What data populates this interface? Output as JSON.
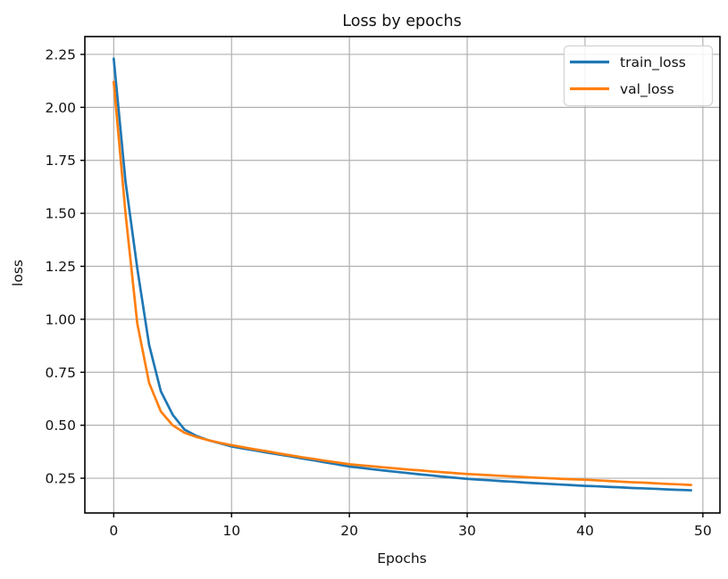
{
  "chart_data": {
    "type": "line",
    "title": "Loss by epochs",
    "xlabel": "Epochs",
    "ylabel": "loss",
    "x": [
      0,
      1,
      2,
      3,
      4,
      5,
      6,
      7,
      8,
      9,
      10,
      11,
      12,
      13,
      14,
      15,
      16,
      17,
      18,
      19,
      20,
      21,
      22,
      23,
      24,
      25,
      26,
      27,
      28,
      29,
      30,
      31,
      32,
      33,
      34,
      35,
      36,
      37,
      38,
      39,
      40,
      41,
      42,
      43,
      44,
      45,
      46,
      47,
      48,
      49
    ],
    "series": [
      {
        "name": "train_loss",
        "color": "#1f77b4",
        "values": [
          2.23,
          1.65,
          1.24,
          0.88,
          0.66,
          0.55,
          0.48,
          0.45,
          0.43,
          0.415,
          0.4,
          0.39,
          0.381,
          0.371,
          0.362,
          0.353,
          0.343,
          0.334,
          0.324,
          0.315,
          0.305,
          0.299,
          0.292,
          0.286,
          0.28,
          0.274,
          0.268,
          0.263,
          0.257,
          0.252,
          0.247,
          0.243,
          0.24,
          0.236,
          0.233,
          0.229,
          0.226,
          0.223,
          0.22,
          0.217,
          0.214,
          0.212,
          0.209,
          0.207,
          0.204,
          0.202,
          0.2,
          0.197,
          0.195,
          0.193
        ]
      },
      {
        "name": "val_loss",
        "color": "#ff7f0e",
        "values": [
          2.12,
          1.5,
          0.98,
          0.7,
          0.565,
          0.5,
          0.465,
          0.445,
          0.43,
          0.417,
          0.406,
          0.396,
          0.386,
          0.377,
          0.367,
          0.358,
          0.349,
          0.341,
          0.332,
          0.324,
          0.316,
          0.311,
          0.306,
          0.301,
          0.296,
          0.291,
          0.287,
          0.282,
          0.278,
          0.274,
          0.27,
          0.267,
          0.264,
          0.261,
          0.258,
          0.255,
          0.252,
          0.25,
          0.247,
          0.245,
          0.243,
          0.24,
          0.237,
          0.234,
          0.231,
          0.229,
          0.226,
          0.223,
          0.221,
          0.218
        ]
      }
    ],
    "xlim": [
      -2.45,
      51.45
    ],
    "ylim": [
      0.086,
      2.334
    ],
    "xticks": [
      0,
      10,
      20,
      30,
      40,
      50
    ],
    "xtick_labels": [
      "0",
      "10",
      "20",
      "30",
      "40",
      "50"
    ],
    "yticks": [
      0.25,
      0.5,
      0.75,
      1.0,
      1.25,
      1.5,
      1.75,
      2.0,
      2.25
    ],
    "ytick_labels": [
      "0.25",
      "0.50",
      "0.75",
      "1.00",
      "1.25",
      "1.50",
      "1.75",
      "2.00",
      "2.25"
    ],
    "grid": true,
    "legend_position": "upper right",
    "legend": [
      "train_loss",
      "val_loss"
    ],
    "colors": {
      "grid": "#b0b0b0",
      "spine": "#000000",
      "text": "#111111",
      "background": "#ffffff",
      "legend_border": "#d3d3d3",
      "legend_background": "#ffffff"
    }
  }
}
